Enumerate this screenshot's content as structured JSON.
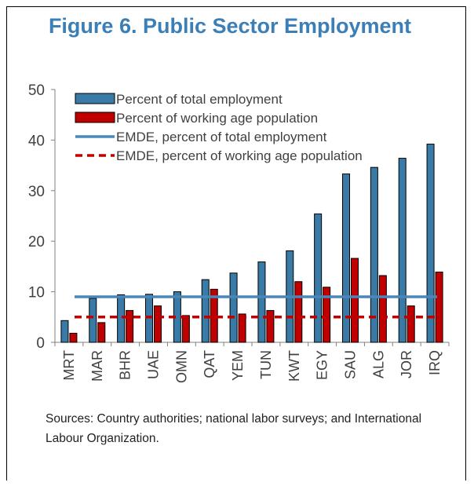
{
  "figure": {
    "title": "Figure 6. Public Sector Employment",
    "source": "Sources: Country authorities; national labor surveys; and International Labour Organization."
  },
  "chart_data": {
    "type": "bar",
    "title": "Figure 6. Public Sector Employment",
    "xlabel": "",
    "ylabel": "",
    "ylim": [
      0,
      50
    ],
    "yticks": [
      0,
      10,
      20,
      30,
      40,
      50
    ],
    "categories": [
      "MRT",
      "MAR",
      "BHR",
      "UAE",
      "OMN",
      "QAT",
      "YEM",
      "TUN",
      "KWT",
      "EGY",
      "SAU",
      "ALG",
      "JOR",
      "IRQ"
    ],
    "series": [
      {
        "name": "Percent of total employment",
        "color": "#3a7aa6",
        "values": [
          4.3,
          8.7,
          9.4,
          9.5,
          10.0,
          12.4,
          13.7,
          15.9,
          18.1,
          25.4,
          33.3,
          34.6,
          36.4,
          39.2
        ]
      },
      {
        "name": "Percent of working age population",
        "color": "#c00000",
        "values": [
          1.8,
          3.9,
          6.3,
          7.2,
          5.3,
          10.5,
          5.6,
          6.3,
          12.0,
          10.9,
          16.6,
          13.2,
          7.2,
          13.9
        ]
      }
    ],
    "reference_lines": [
      {
        "name": "EMDE, percent of total employment",
        "value": 9.0,
        "color": "#4a86b8",
        "style": "solid"
      },
      {
        "name": "EMDE, percent of working age population",
        "value": 5.0,
        "color": "#c00000",
        "style": "dashed"
      }
    ],
    "grid": false,
    "legend": "top-left"
  }
}
